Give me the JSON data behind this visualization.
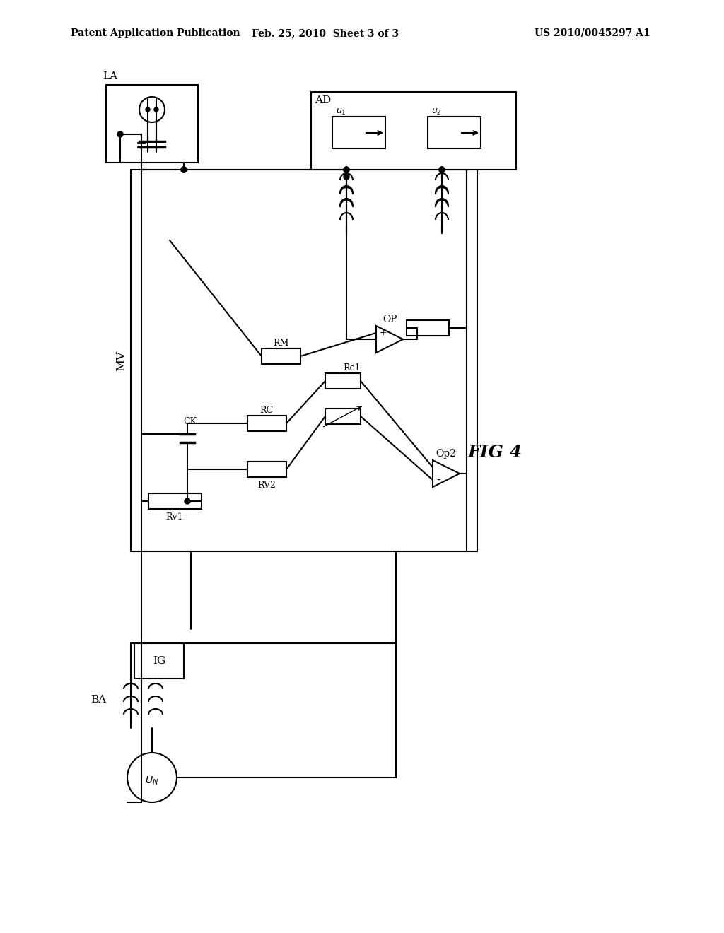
{
  "title_left": "Patent Application Publication",
  "title_mid": "Feb. 25, 2010  Sheet 3 of 3",
  "title_right": "US 2010/0045297 A1",
  "fig_label": "FIG 4",
  "bg_color": "#ffffff",
  "line_color": "#000000",
  "component_labels": {
    "LA": "LA",
    "MV": "MV",
    "AD": "AD",
    "CK": "CK",
    "RM": "RM",
    "RC": "RC",
    "Rc1": "Rc1",
    "RV2": "RV2",
    "Rv1": "Rv1",
    "OP": "OP",
    "Op2": "Op2",
    "BA": "BA",
    "IG": "IG",
    "UN": "U_N",
    "U1": "u_1",
    "U2": "u_2"
  }
}
